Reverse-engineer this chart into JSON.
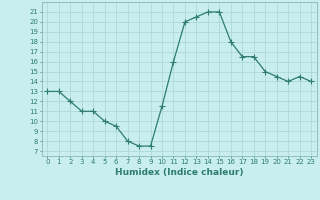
{
  "x": [
    0,
    1,
    2,
    3,
    4,
    5,
    6,
    7,
    8,
    9,
    10,
    11,
    12,
    13,
    14,
    15,
    16,
    17,
    18,
    19,
    20,
    21,
    22,
    23
  ],
  "y": [
    13,
    13,
    12,
    11,
    11,
    10,
    9.5,
    8,
    7.5,
    7.5,
    11.5,
    16,
    20,
    20.5,
    21,
    21,
    18,
    16.5,
    16.5,
    15,
    14.5,
    14,
    14.5,
    14
  ],
  "xlabel": "Humidex (Indice chaleur)",
  "xlim": [
    -0.5,
    23.5
  ],
  "ylim": [
    6.5,
    22
  ],
  "yticks": [
    7,
    8,
    9,
    10,
    11,
    12,
    13,
    14,
    15,
    16,
    17,
    18,
    19,
    20,
    21
  ],
  "xticks": [
    0,
    1,
    2,
    3,
    4,
    5,
    6,
    7,
    8,
    9,
    10,
    11,
    12,
    13,
    14,
    15,
    16,
    17,
    18,
    19,
    20,
    21,
    22,
    23
  ],
  "line_color": "#2e7d6e",
  "marker_color": "#2e7d6e",
  "bg_color": "#c8eeee",
  "grid_color": "#aad4d4",
  "spine_color": "#8ab8b8",
  "tick_color": "#2e7d6e",
  "xlabel_color": "#2e7d6e",
  "tick_fontsize": 5.0,
  "xlabel_fontsize": 6.5,
  "marker_size": 2.0,
  "linewidth": 0.9
}
